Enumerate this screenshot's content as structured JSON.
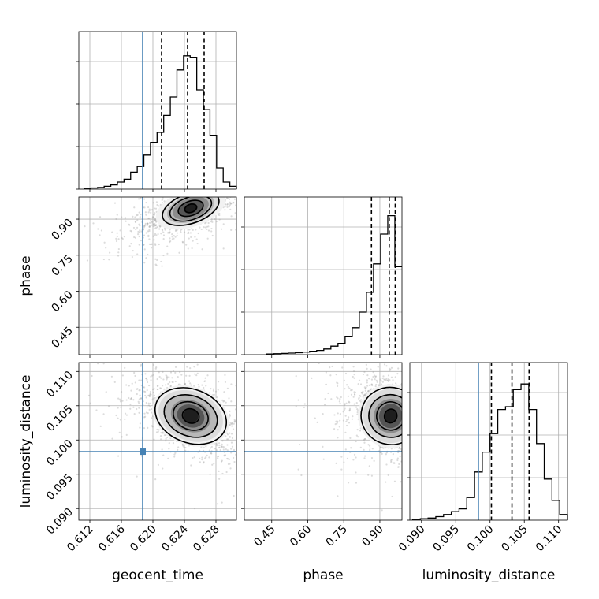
{
  "chart_data": {
    "type": "corner",
    "parameters": [
      "geocent_time",
      "phase",
      "luminosity_distance"
    ],
    "axis_labels": {
      "geocent_time": "geocent_time",
      "phase": "phase",
      "luminosity_distance": "luminosity_distance"
    },
    "ranges": {
      "geocent_time": [
        0.6106,
        0.6306
      ],
      "phase": [
        0.336,
        0.992
      ],
      "luminosity_distance": [
        0.0883,
        0.1113
      ]
    },
    "ticks": {
      "geocent_time": [
        "0.612",
        "0.616",
        "0.620",
        "0.624",
        "0.628"
      ],
      "phase": [
        "0.45",
        "0.60",
        "0.75",
        "0.90"
      ],
      "luminosity_distance": [
        "0.090",
        "0.095",
        "0.100",
        "0.105",
        "0.110"
      ]
    },
    "truths": {
      "geocent_time": 0.6187,
      "phase": null,
      "luminosity_distance": 0.0983
    },
    "quantiles": {
      "geocent_time": [
        0.6211,
        0.6244,
        0.6265
      ],
      "phase": [
        0.865,
        0.939,
        0.964
      ],
      "luminosity_distance": [
        0.1002,
        0.1032,
        0.1057
      ]
    },
    "histograms": {
      "geocent_time": [
        0.005,
        0.008,
        0.012,
        0.02,
        0.03,
        0.05,
        0.07,
        0.12,
        0.16,
        0.24,
        0.33,
        0.4,
        0.52,
        0.65,
        0.84,
        0.94,
        0.93,
        0.7,
        0.56,
        0.38,
        0.15,
        0.05,
        0.02
      ],
      "phase": [
        0.005,
        0.007,
        0.009,
        0.011,
        0.014,
        0.018,
        0.024,
        0.03,
        0.04,
        0.06,
        0.08,
        0.13,
        0.19,
        0.3,
        0.44,
        0.64,
        0.85,
        0.98,
        0.62
      ],
      "luminosity_distance": [
        0.005,
        0.01,
        0.015,
        0.025,
        0.04,
        0.06,
        0.08,
        0.16,
        0.34,
        0.48,
        0.61,
        0.78,
        0.8,
        0.92,
        0.96,
        0.78,
        0.54,
        0.29,
        0.14,
        0.04
      ]
    },
    "contours_2d": {
      "phase_vs_geocent_time": {
        "peak": [
          0.6248,
          0.945
        ],
        "sigma": [
          0.0022,
          0.042
        ],
        "rho": 0.6,
        "levels": [
          0.35,
          0.75,
          1.25,
          1.7
        ]
      },
      "luminosity_distance_vs_geocent_time": {
        "peak": [
          0.6248,
          0.1035
        ],
        "sigma": [
          0.0024,
          0.0022
        ],
        "rho": -0.5,
        "levels": [
          0.45,
          0.95,
          1.45,
          1.95
        ]
      },
      "luminosity_distance_vs_phase": {
        "peak": [
          0.945,
          0.1035
        ],
        "sigma": [
          0.065,
          0.0022
        ],
        "rho": -0.3,
        "levels": [
          0.4,
          0.9,
          1.4,
          1.9
        ]
      }
    },
    "grid": true,
    "colors": {
      "truth": "#4682b4",
      "histogram": "#000000",
      "points": "#9a9a9a"
    }
  }
}
